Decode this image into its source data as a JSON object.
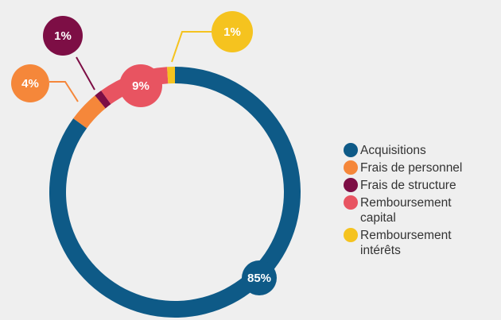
{
  "chart_data": {
    "type": "pie",
    "donut": true,
    "categories": [
      "Acquisitions",
      "Frais de personnel",
      "Frais de structure",
      "Remboursement capital",
      "Remboursement intérêts"
    ],
    "values": [
      85,
      4,
      1,
      9,
      1
    ],
    "value_labels": [
      "85%",
      "4%",
      "1%",
      "9%",
      "1%"
    ],
    "colors": [
      "#0e5a87",
      "#f5873a",
      "#7d0e45",
      "#e85461",
      "#f5c31f"
    ],
    "legend": "right"
  }
}
